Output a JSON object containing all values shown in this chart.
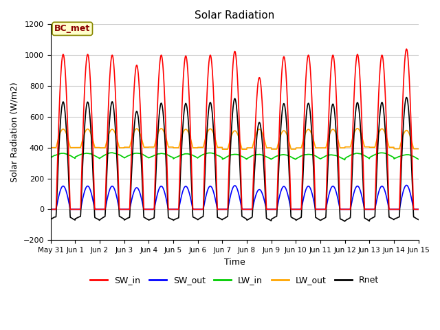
{
  "title": "Solar Radiation",
  "ylabel": "Solar Radiation (W/m2)",
  "xlabel": "Time",
  "ylim": [
    -200,
    1200
  ],
  "yticks": [
    -200,
    0,
    200,
    400,
    600,
    800,
    1000,
    1200
  ],
  "bg_color": "#ffffff",
  "fig_color": "#ffffff",
  "site_label": "BC_met",
  "site_label_color": "#8B0000",
  "site_box_color": "#ffffcc",
  "n_days": 15,
  "pts_per_day": 144,
  "sw_in_peaks": [
    1005,
    1005,
    1000,
    935,
    1000,
    995,
    1000,
    1025,
    855,
    990,
    1000,
    1000,
    1005,
    1000,
    1040
  ],
  "sw_out_scale": 0.15,
  "lw_in_base": 330,
  "lw_in_amplitude": 30,
  "lw_out_base": 400,
  "lw_out_daytime_peak": 120,
  "rnet_nighttime": -80,
  "colors": {
    "SW_in": "#ff0000",
    "SW_out": "#0000ff",
    "LW_in": "#00cc00",
    "LW_out": "#ffa500",
    "Rnet": "#000000"
  },
  "xtick_labels": [
    "May 31",
    "Jun 1",
    "Jun 2",
    "Jun 3",
    "Jun 4",
    "Jun 5",
    "Jun 6",
    "Jun 7",
    "Jun 8",
    "Jun 9",
    "Jun 10",
    "Jun 11",
    "Jun 12",
    "Jun 13",
    "Jun 14",
    "Jun 15"
  ],
  "legend_entries": [
    "SW_in",
    "SW_out",
    "LW_in",
    "LW_out",
    "Rnet"
  ]
}
